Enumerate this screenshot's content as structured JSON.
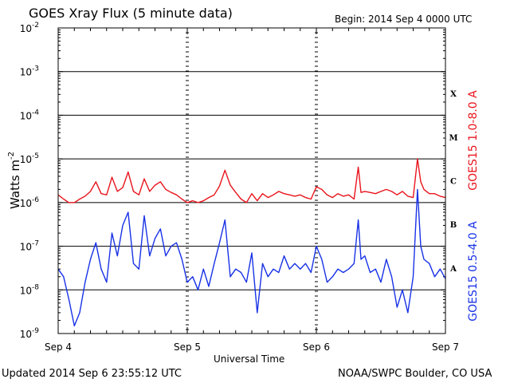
{
  "header": {
    "title": "GOES Xray Flux (5 minute data)",
    "begin": "Begin:  2014 Sep 4 0000 UTC"
  },
  "footer": {
    "updated": "Updated 2014 Sep  6 23:55:12 UTC",
    "credit": "NOAA/SWPC Boulder, CO USA"
  },
  "colors": {
    "long": "#e8141c",
    "short": "#1832e6",
    "axis": "#000000"
  },
  "chart_data": {
    "type": "line",
    "title": "GOES Xray Flux (5 minute data)",
    "xlabel": "Universal Time",
    "ylabel_base": "Watts m",
    "ylabel_exp": "-2",
    "yscale": "log",
    "ylim": [
      1e-09,
      0.01
    ],
    "xlim": [
      0,
      72
    ],
    "x_unit": "hours since 2014 Sep 4 0000 UTC",
    "x_ticks": [
      {
        "x": 0,
        "label": "Sep 4"
      },
      {
        "x": 24,
        "label": "Sep 5"
      },
      {
        "x": 48,
        "label": "Sep 6"
      },
      {
        "x": 72,
        "label": "Sep 7"
      }
    ],
    "y_ticks": [
      {
        "exp": -9,
        "label": "10",
        "sup": "-9"
      },
      {
        "exp": -8,
        "label": "10",
        "sup": "-8"
      },
      {
        "exp": -7,
        "label": "10",
        "sup": "-7"
      },
      {
        "exp": -6,
        "label": "10",
        "sup": "-6"
      },
      {
        "exp": -5,
        "label": "10",
        "sup": "-5"
      },
      {
        "exp": -4,
        "label": "10",
        "sup": "-4"
      },
      {
        "exp": -3,
        "label": "10",
        "sup": "-3"
      },
      {
        "exp": -2,
        "label": "10",
        "sup": "-2"
      }
    ],
    "flare_classes": [
      {
        "label": "X",
        "exp": -3.5
      },
      {
        "label": "M",
        "exp": -4.5
      },
      {
        "label": "C",
        "exp": -5.5
      },
      {
        "label": "B",
        "exp": -6.5
      },
      {
        "label": "A",
        "exp": -7.5
      }
    ],
    "grid": "horizontal lines at each decade",
    "series": [
      {
        "name": "GOES15 1.0-8.0 A",
        "color": "#e8141c",
        "points": [
          [
            0,
            1.5e-06
          ],
          [
            1,
            1.2e-06
          ],
          [
            2,
            1e-06
          ],
          [
            3,
            1e-06
          ],
          [
            4,
            1.2e-06
          ],
          [
            5,
            1.4e-06
          ],
          [
            6,
            1.8e-06
          ],
          [
            7,
            3e-06
          ],
          [
            8,
            1.6e-06
          ],
          [
            9,
            1.5e-06
          ],
          [
            10,
            3.8e-06
          ],
          [
            11,
            1.8e-06
          ],
          [
            12,
            2.2e-06
          ],
          [
            13,
            5e-06
          ],
          [
            14,
            1.8e-06
          ],
          [
            15,
            1.5e-06
          ],
          [
            16,
            3.5e-06
          ],
          [
            17,
            1.8e-06
          ],
          [
            18,
            2.5e-06
          ],
          [
            19,
            3e-06
          ],
          [
            20,
            2e-06
          ],
          [
            21,
            1.7e-06
          ],
          [
            22,
            1.5e-06
          ],
          [
            23,
            1.2e-06
          ],
          [
            24,
            1e-06
          ],
          [
            25,
            1.1e-06
          ],
          [
            26,
            1e-06
          ],
          [
            27,
            1.1e-06
          ],
          [
            28,
            1.3e-06
          ],
          [
            29,
            1.5e-06
          ],
          [
            30,
            2.4e-06
          ],
          [
            31,
            5.5e-06
          ],
          [
            32,
            2.5e-06
          ],
          [
            33,
            1.7e-06
          ],
          [
            34,
            1.2e-06
          ],
          [
            35,
            1e-06
          ],
          [
            36,
            1.6e-06
          ],
          [
            37,
            1.1e-06
          ],
          [
            38,
            1.6e-06
          ],
          [
            39,
            1.3e-06
          ],
          [
            40,
            1.5e-06
          ],
          [
            41,
            1.8e-06
          ],
          [
            42,
            1.6e-06
          ],
          [
            43,
            1.5e-06
          ],
          [
            44,
            1.4e-06
          ],
          [
            45,
            1.5e-06
          ],
          [
            46,
            1.3e-06
          ],
          [
            47,
            1.2e-06
          ],
          [
            48,
            2.3e-06
          ],
          [
            49,
            2e-06
          ],
          [
            50,
            1.5e-06
          ],
          [
            51,
            1.3e-06
          ],
          [
            52,
            1.6e-06
          ],
          [
            53,
            1.4e-06
          ],
          [
            54,
            1.5e-06
          ],
          [
            55,
            1.2e-06
          ],
          [
            55.8,
            6.5e-06
          ],
          [
            56.3,
            1.7e-06
          ],
          [
            57,
            1.8e-06
          ],
          [
            58,
            1.7e-06
          ],
          [
            59,
            1.6e-06
          ],
          [
            60,
            1.8e-06
          ],
          [
            61,
            2e-06
          ],
          [
            62,
            1.8e-06
          ],
          [
            63,
            1.5e-06
          ],
          [
            64,
            1.8e-06
          ],
          [
            65,
            1.4e-06
          ],
          [
            66,
            1.3e-06
          ],
          [
            66.8,
            1e-05
          ],
          [
            67.4,
            3e-06
          ],
          [
            68,
            2e-06
          ],
          [
            69,
            1.6e-06
          ],
          [
            70,
            1.6e-06
          ],
          [
            71,
            1.4e-06
          ],
          [
            72,
            1.3e-06
          ]
        ]
      },
      {
        "name": "GOES15 0.5-4.0 A",
        "color": "#1832e6",
        "points": [
          [
            0,
            3e-08
          ],
          [
            1,
            2e-08
          ],
          [
            2,
            6e-09
          ],
          [
            3,
            1.5e-09
          ],
          [
            4,
            3e-09
          ],
          [
            5,
            1.5e-08
          ],
          [
            6,
            5e-08
          ],
          [
            7,
            1.2e-07
          ],
          [
            8,
            3e-08
          ],
          [
            9,
            1.5e-08
          ],
          [
            10,
            2e-07
          ],
          [
            11,
            6e-08
          ],
          [
            12,
            3e-07
          ],
          [
            13,
            6e-07
          ],
          [
            14,
            4e-08
          ],
          [
            15,
            3e-08
          ],
          [
            16,
            5e-07
          ],
          [
            17,
            6e-08
          ],
          [
            18,
            1.5e-07
          ],
          [
            19,
            2.5e-07
          ],
          [
            20,
            6e-08
          ],
          [
            21,
            1e-07
          ],
          [
            22,
            1.2e-07
          ],
          [
            23,
            5e-08
          ],
          [
            24,
            1.5e-08
          ],
          [
            25,
            2e-08
          ],
          [
            26,
            1e-08
          ],
          [
            27,
            3e-08
          ],
          [
            28,
            1.2e-08
          ],
          [
            29,
            4e-08
          ],
          [
            30,
            1.2e-07
          ],
          [
            31,
            4e-07
          ],
          [
            32,
            2e-08
          ],
          [
            33,
            3e-08
          ],
          [
            34,
            2.5e-08
          ],
          [
            35,
            1.5e-08
          ],
          [
            36,
            7e-08
          ],
          [
            37,
            3e-09
          ],
          [
            38,
            4e-08
          ],
          [
            39,
            2e-08
          ],
          [
            40,
            3e-08
          ],
          [
            41,
            2.5e-08
          ],
          [
            42,
            6e-08
          ],
          [
            43,
            3e-08
          ],
          [
            44,
            4e-08
          ],
          [
            45,
            3e-08
          ],
          [
            46,
            4e-08
          ],
          [
            47,
            2.5e-08
          ],
          [
            48,
            1e-07
          ],
          [
            49,
            5e-08
          ],
          [
            50,
            1.5e-08
          ],
          [
            51,
            2e-08
          ],
          [
            52,
            3e-08
          ],
          [
            53,
            2.5e-08
          ],
          [
            54,
            3e-08
          ],
          [
            55,
            4e-08
          ],
          [
            55.8,
            4e-07
          ],
          [
            56.3,
            5e-08
          ],
          [
            57,
            6e-08
          ],
          [
            58,
            2.5e-08
          ],
          [
            59,
            3e-08
          ],
          [
            60,
            1.5e-08
          ],
          [
            61,
            5e-08
          ],
          [
            62,
            2e-08
          ],
          [
            63,
            4e-09
          ],
          [
            64,
            1e-08
          ],
          [
            65,
            3e-09
          ],
          [
            66,
            2e-08
          ],
          [
            66.8,
            2e-06
          ],
          [
            67.4,
            1e-07
          ],
          [
            68,
            5e-08
          ],
          [
            69,
            4e-08
          ],
          [
            70,
            2e-08
          ],
          [
            71,
            3e-08
          ],
          [
            72,
            1.8e-08
          ]
        ]
      }
    ]
  }
}
